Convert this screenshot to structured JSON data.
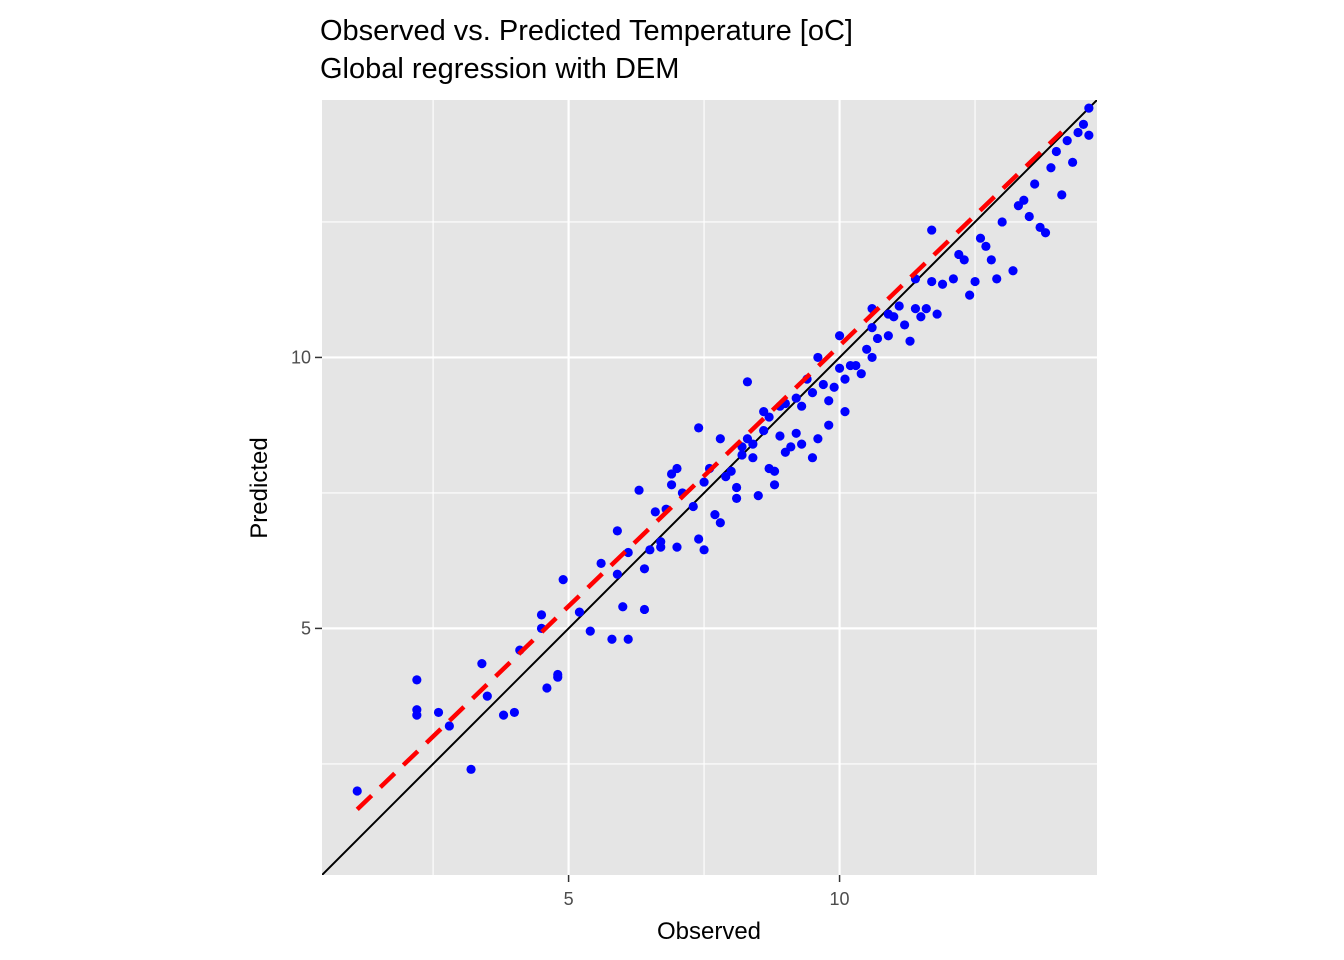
{
  "chart_data": {
    "type": "scatter",
    "title": "Observed vs. Predicted Temperature [oC]",
    "subtitle": "Global regression with DEM",
    "xlabel": "Observed",
    "ylabel": "Predicted",
    "xlim": [
      0.45,
      14.75
    ],
    "ylim": [
      0.45,
      14.75
    ],
    "x_ticks": [
      5,
      10
    ],
    "y_ticks": [
      5,
      10
    ],
    "x_minor": [
      2.5,
      7.5,
      12.5
    ],
    "y_minor": [
      2.5,
      7.5,
      12.5
    ],
    "grid": true,
    "background": "#e5e5e5",
    "point_color": "#0000ff",
    "reference_line": {
      "type": "identity",
      "color": "#000000",
      "style": "solid"
    },
    "fit_line": {
      "color": "#ff0000",
      "style": "dashed",
      "x": [
        1.1,
        14.1
      ],
      "y": [
        1.66,
        14.16
      ]
    },
    "points": [
      [
        1.1,
        2.0
      ],
      [
        2.2,
        4.05
      ],
      [
        2.2,
        3.5
      ],
      [
        2.2,
        3.4
      ],
      [
        2.6,
        3.45
      ],
      [
        2.8,
        3.2
      ],
      [
        3.2,
        2.4
      ],
      [
        3.4,
        4.35
      ],
      [
        3.5,
        3.75
      ],
      [
        3.8,
        3.4
      ],
      [
        4.0,
        3.45
      ],
      [
        4.1,
        4.6
      ],
      [
        4.5,
        5.25
      ],
      [
        4.5,
        5.0
      ],
      [
        4.6,
        3.9
      ],
      [
        4.8,
        4.15
      ],
      [
        4.8,
        4.1
      ],
      [
        4.9,
        5.9
      ],
      [
        5.2,
        5.3
      ],
      [
        5.4,
        4.95
      ],
      [
        5.6,
        6.2
      ],
      [
        5.8,
        4.8
      ],
      [
        5.9,
        6.8
      ],
      [
        5.9,
        6.0
      ],
      [
        6.0,
        5.4
      ],
      [
        6.1,
        4.8
      ],
      [
        6.1,
        6.4
      ],
      [
        6.3,
        7.55
      ],
      [
        6.4,
        5.35
      ],
      [
        6.4,
        6.1
      ],
      [
        6.5,
        6.45
      ],
      [
        6.6,
        7.15
      ],
      [
        6.7,
        6.5
      ],
      [
        6.7,
        6.6
      ],
      [
        6.8,
        7.2
      ],
      [
        6.9,
        7.85
      ],
      [
        6.9,
        7.65
      ],
      [
        7.0,
        6.5
      ],
      [
        7.0,
        7.95
      ],
      [
        7.1,
        7.5
      ],
      [
        7.3,
        7.25
      ],
      [
        7.4,
        6.65
      ],
      [
        7.4,
        8.7
      ],
      [
        7.5,
        6.45
      ],
      [
        7.5,
        7.7
      ],
      [
        7.6,
        7.95
      ],
      [
        7.7,
        7.1
      ],
      [
        7.8,
        6.95
      ],
      [
        7.8,
        8.5
      ],
      [
        7.9,
        7.8
      ],
      [
        8.0,
        7.9
      ],
      [
        8.1,
        7.6
      ],
      [
        8.1,
        7.4
      ],
      [
        8.2,
        8.2
      ],
      [
        8.2,
        8.35
      ],
      [
        8.3,
        8.5
      ],
      [
        8.3,
        9.55
      ],
      [
        8.4,
        8.15
      ],
      [
        8.4,
        8.4
      ],
      [
        8.5,
        7.45
      ],
      [
        8.6,
        8.65
      ],
      [
        8.6,
        9.0
      ],
      [
        8.7,
        7.95
      ],
      [
        8.7,
        8.9
      ],
      [
        8.8,
        7.65
      ],
      [
        8.8,
        7.9
      ],
      [
        8.9,
        8.55
      ],
      [
        8.9,
        9.1
      ],
      [
        9.0,
        8.25
      ],
      [
        9.0,
        9.15
      ],
      [
        9.1,
        8.35
      ],
      [
        9.2,
        9.25
      ],
      [
        9.2,
        8.6
      ],
      [
        9.3,
        9.1
      ],
      [
        9.3,
        8.4
      ],
      [
        9.4,
        9.6
      ],
      [
        9.5,
        8.15
      ],
      [
        9.5,
        9.35
      ],
      [
        9.6,
        8.5
      ],
      [
        9.6,
        10.0
      ],
      [
        9.7,
        9.5
      ],
      [
        9.8,
        9.2
      ],
      [
        9.8,
        8.75
      ],
      [
        9.9,
        9.45
      ],
      [
        10.0,
        9.8
      ],
      [
        10.0,
        10.4
      ],
      [
        10.1,
        9.0
      ],
      [
        10.1,
        9.6
      ],
      [
        10.2,
        9.85
      ],
      [
        10.3,
        9.85
      ],
      [
        10.4,
        9.7
      ],
      [
        10.5,
        10.15
      ],
      [
        10.6,
        10.55
      ],
      [
        10.6,
        10.9
      ],
      [
        10.6,
        10.0
      ],
      [
        10.7,
        10.35
      ],
      [
        10.9,
        10.8
      ],
      [
        10.9,
        10.4
      ],
      [
        11.0,
        10.75
      ],
      [
        11.1,
        10.95
      ],
      [
        11.2,
        10.6
      ],
      [
        11.3,
        10.3
      ],
      [
        11.4,
        10.9
      ],
      [
        11.4,
        11.45
      ],
      [
        11.5,
        10.75
      ],
      [
        11.6,
        10.9
      ],
      [
        11.7,
        11.4
      ],
      [
        11.7,
        12.35
      ],
      [
        11.8,
        10.8
      ],
      [
        11.9,
        11.35
      ],
      [
        12.1,
        11.45
      ],
      [
        12.2,
        11.9
      ],
      [
        12.3,
        11.8
      ],
      [
        12.4,
        11.15
      ],
      [
        12.5,
        11.4
      ],
      [
        12.6,
        12.2
      ],
      [
        12.7,
        12.05
      ],
      [
        12.8,
        11.8
      ],
      [
        12.9,
        11.45
      ],
      [
        13.0,
        12.5
      ],
      [
        13.2,
        11.6
      ],
      [
        13.3,
        12.8
      ],
      [
        13.4,
        12.9
      ],
      [
        13.5,
        12.6
      ],
      [
        13.6,
        13.2
      ],
      [
        13.7,
        12.4
      ],
      [
        13.8,
        12.3
      ],
      [
        13.9,
        13.5
      ],
      [
        14.0,
        13.8
      ],
      [
        14.1,
        13.0
      ],
      [
        14.2,
        14.0
      ],
      [
        14.3,
        13.6
      ],
      [
        14.4,
        14.15
      ],
      [
        14.5,
        14.3
      ],
      [
        14.6,
        14.6
      ],
      [
        14.6,
        14.1
      ]
    ]
  }
}
